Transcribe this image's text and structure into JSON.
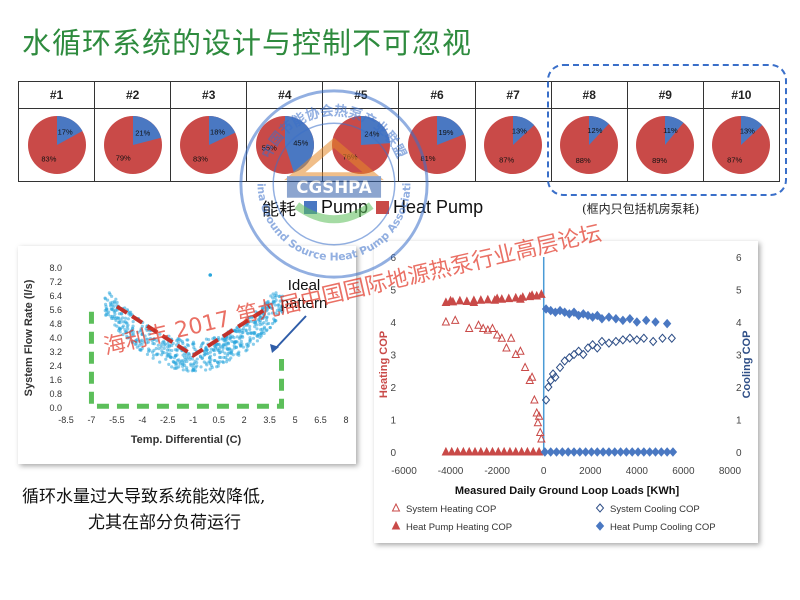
{
  "title": "水循环系统的设计与控制不可忽视",
  "pie_section": {
    "legend_prefix": "能耗",
    "legend_items": [
      {
        "name": "Pump",
        "color": "#4a78c2"
      },
      {
        "name": "Heat Pump",
        "color": "#c94a48"
      }
    ],
    "note": "(框内只包括机房泵耗)"
  },
  "captions": {
    "line1": "循环水量过大导致系统能效降低,",
    "line2": "尤其在部分负荷运行"
  },
  "watermark": {
    "seal_text_top": "中国节能协会热泵产业联盟",
    "seal_text_bottom": "China Ground Source Heat Pump Association",
    "seal_center": "CGSHPA",
    "diagonal_text": "海利丰 2017 第九届中国国际地源热泵行业高层论坛"
  },
  "chart_data": [
    {
      "type": "pie",
      "title": "",
      "categories": [
        "#1",
        "#2",
        "#3",
        "#4",
        "#5",
        "#6",
        "#7",
        "#8",
        "#9",
        "#10"
      ],
      "series": [
        {
          "name": "Pump",
          "color": "#4a78c2",
          "values": [
            17,
            21,
            18,
            45,
            24,
            19,
            13,
            12,
            11,
            13
          ]
        },
        {
          "name": "Heat Pump",
          "color": "#c94a48",
          "values": [
            83,
            79,
            83,
            55,
            76,
            81,
            87,
            88,
            89,
            87
          ]
        }
      ],
      "slice_labels": {
        "pump": [
          "17%",
          "21%",
          "18%",
          "45%",
          "24%",
          "19%",
          "13%",
          "12%",
          "11%",
          "13%"
        ],
        "heat_pump": [
          "83%",
          "79%",
          "83%",
          "55%",
          "76%",
          "81%",
          "87%",
          "88%",
          "89%",
          "87%"
        ]
      }
    },
    {
      "type": "scatter",
      "title": "",
      "xlabel": "Temp. Differential (C)",
      "ylabel": "System Flow Rate (l/s)",
      "xlim": [
        -8.5,
        8
      ],
      "ylim": [
        0,
        8
      ],
      "x_ticks": [
        "-8.5",
        "-7",
        "-5.5",
        "-4",
        "-2.5",
        "-1",
        "0.5",
        "2",
        "3.5",
        "5",
        "6.5",
        "8"
      ],
      "y_ticks": [
        "0.0",
        "0.8",
        "1.6",
        "2.4",
        "3.2",
        "4.0",
        "4.8",
        "5.6",
        "6.4",
        "7.2",
        "8.0"
      ],
      "annotation": {
        "text_line1": "Ideal",
        "text_line2": "pattern"
      },
      "cloud_color": "#2aa6dc",
      "trend_color": "#c0312b",
      "ideal_color": "#5cbf5a",
      "trend_line": [
        {
          "x": -5.5,
          "y": 5.8
        },
        {
          "x": -1.0,
          "y": 3.0
        },
        {
          "x": 3.5,
          "y": 5.8
        }
      ],
      "ideal_line": [
        {
          "x": -7,
          "y": 5.5
        },
        {
          "x": -7,
          "y": 0.1
        },
        {
          "x": 4.2,
          "y": 0.1
        },
        {
          "x": 4.2,
          "y": 2.8
        }
      ],
      "outlier_point": {
        "x": 0.0,
        "y": 7.6
      }
    },
    {
      "type": "scatter",
      "title": "",
      "xlabel": "Measured Daily Ground Loop Loads [KWh]",
      "ylabel": "Heating COP",
      "y2label": "Cooling COP",
      "xlim": [
        -6000,
        8000
      ],
      "ylim": [
        0,
        6
      ],
      "x_ticks": [
        "-6000",
        "-4000",
        "-2000",
        "0",
        "2000",
        "4000",
        "6000",
        "8000"
      ],
      "y_ticks": [
        "0",
        "1",
        "2",
        "3",
        "4",
        "5",
        "6"
      ],
      "y2_ticks": [
        "0",
        "1",
        "2",
        "3",
        "4",
        "5",
        "6"
      ],
      "series": [
        {
          "name": "System Heating COP",
          "color": "#c94a48",
          "marker": "triangle-open"
        },
        {
          "name": "System Cooling COP",
          "color": "#2f4f87",
          "marker": "diamond-open"
        },
        {
          "name": "Heat Pump Heating COP",
          "color": "#c94a48",
          "marker": "triangle"
        },
        {
          "name": "Heat Pump Cooling COP",
          "color": "#4a78c2",
          "marker": "diamond"
        }
      ],
      "system_heating_cop": [
        [
          -4200,
          4.0
        ],
        [
          -3800,
          4.05
        ],
        [
          -3200,
          3.8
        ],
        [
          -2800,
          3.9
        ],
        [
          -2600,
          3.8
        ],
        [
          -2400,
          3.75
        ],
        [
          -2200,
          3.8
        ],
        [
          -2000,
          3.6
        ],
        [
          -1800,
          3.5
        ],
        [
          -1600,
          3.2
        ],
        [
          -1400,
          3.5
        ],
        [
          -1200,
          3.0
        ],
        [
          -1000,
          3.1
        ],
        [
          -800,
          2.6
        ],
        [
          -600,
          2.2
        ],
        [
          -500,
          2.3
        ],
        [
          -400,
          1.6
        ],
        [
          -300,
          1.2
        ],
        [
          -250,
          0.9
        ],
        [
          -200,
          1.1
        ],
        [
          -150,
          0.6
        ],
        [
          -100,
          0.4
        ]
      ],
      "heat_pump_heating_cop": [
        [
          -4200,
          4.6
        ],
        [
          -3900,
          4.62
        ],
        [
          -3600,
          4.65
        ],
        [
          -3300,
          4.63
        ],
        [
          -3000,
          4.66
        ],
        [
          -2700,
          4.67
        ],
        [
          -2400,
          4.68
        ],
        [
          -2100,
          4.67
        ],
        [
          -1800,
          4.7
        ],
        [
          -1500,
          4.72
        ],
        [
          -1200,
          4.74
        ],
        [
          -900,
          4.76
        ],
        [
          -600,
          4.78
        ],
        [
          -300,
          4.8
        ],
        [
          -100,
          4.85
        ],
        [
          -1000,
          4.7
        ],
        [
          -2000,
          4.72
        ],
        [
          -3000,
          4.6
        ],
        [
          -4000,
          4.65
        ],
        [
          -500,
          4.82
        ]
      ],
      "system_cooling_cop": [
        [
          100,
          1.6
        ],
        [
          200,
          2.0
        ],
        [
          300,
          2.2
        ],
        [
          400,
          2.4
        ],
        [
          500,
          2.3
        ],
        [
          700,
          2.6
        ],
        [
          900,
          2.8
        ],
        [
          1100,
          2.9
        ],
        [
          1300,
          3.0
        ],
        [
          1500,
          3.1
        ],
        [
          1700,
          3.0
        ],
        [
          1900,
          3.2
        ],
        [
          2100,
          3.3
        ],
        [
          2300,
          3.2
        ],
        [
          2500,
          3.4
        ],
        [
          2800,
          3.35
        ],
        [
          3100,
          3.4
        ],
        [
          3400,
          3.45
        ],
        [
          3700,
          3.5
        ],
        [
          4000,
          3.45
        ],
        [
          4300,
          3.5
        ],
        [
          4700,
          3.4
        ],
        [
          5100,
          3.5
        ],
        [
          5500,
          3.5
        ]
      ],
      "heat_pump_cooling_cop": [
        [
          100,
          4.4
        ],
        [
          300,
          4.35
        ],
        [
          500,
          4.3
        ],
        [
          700,
          4.35
        ],
        [
          900,
          4.3
        ],
        [
          1100,
          4.25
        ],
        [
          1300,
          4.3
        ],
        [
          1500,
          4.2
        ],
        [
          1700,
          4.25
        ],
        [
          1900,
          4.2
        ],
        [
          2100,
          4.15
        ],
        [
          2300,
          4.2
        ],
        [
          2500,
          4.1
        ],
        [
          2800,
          4.15
        ],
        [
          3100,
          4.1
        ],
        [
          3400,
          4.05
        ],
        [
          3700,
          4.1
        ],
        [
          4000,
          4.0
        ],
        [
          4400,
          4.05
        ],
        [
          4800,
          4.0
        ],
        [
          5300,
          3.95
        ]
      ],
      "zero_band": {
        "x_from": -4200,
        "x_to": 5600,
        "y": 0
      }
    }
  ]
}
